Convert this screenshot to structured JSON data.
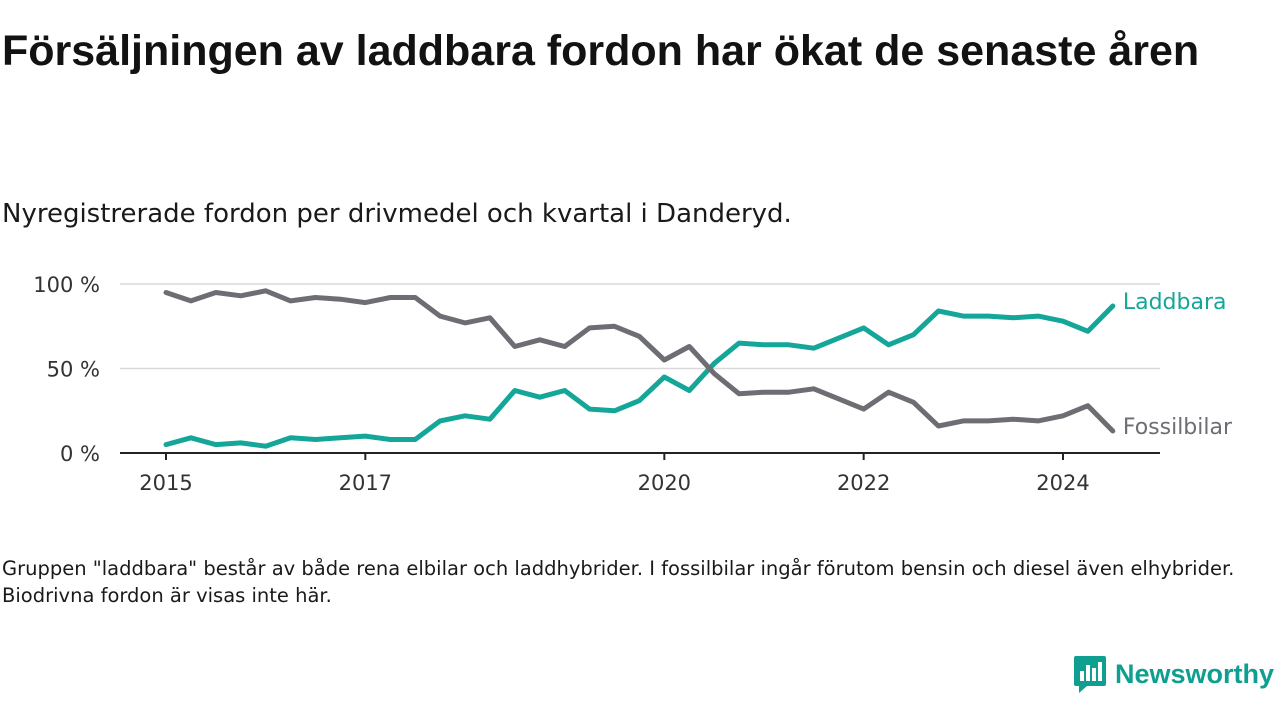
{
  "title": "Försäljningen av laddbara fordon har ökat de senaste åren",
  "subtitle": "Nyregistrerade fordon per drivmedel och kvartal i Danderyd.",
  "note": "Gruppen \"laddbara\" består av både rena elbilar och laddhybrider. I fossilbilar ingår förutom bensin och diesel även elhybrider. Biodrivna fordon är visas inte här.",
  "brand": {
    "name": "Newsworthy",
    "color": "#0e9f90",
    "icon": "newsworthy-logo-icon"
  },
  "chart_data": {
    "type": "line",
    "title": "Försäljningen av laddbara fordon har ökat de senaste åren",
    "xlabel": "",
    "ylabel": "",
    "ylim": [
      0,
      100
    ],
    "y_ticks": [
      0,
      50,
      100
    ],
    "y_tick_labels": [
      "0 %",
      "50 %",
      "100 %"
    ],
    "x_ticks": [
      2015,
      2017,
      2020,
      2022,
      2024
    ],
    "x_tick_labels": [
      "2015",
      "2017",
      "2020",
      "2022",
      "2024"
    ],
    "grid": true,
    "x": [
      2015.0,
      2015.25,
      2015.5,
      2015.75,
      2016.0,
      2016.25,
      2016.5,
      2016.75,
      2017.0,
      2017.25,
      2017.5,
      2017.75,
      2018.0,
      2018.25,
      2018.5,
      2018.75,
      2019.0,
      2019.25,
      2019.5,
      2019.75,
      2020.0,
      2020.25,
      2020.5,
      2020.75,
      2021.0,
      2021.25,
      2021.5,
      2021.75,
      2022.0,
      2022.25,
      2022.5,
      2022.75,
      2023.0,
      2023.25,
      2023.5,
      2023.75,
      2024.0,
      2024.25,
      2024.5
    ],
    "series": [
      {
        "name": "Laddbara",
        "color": "#14a699",
        "values": [
          5,
          9,
          5,
          6,
          4,
          9,
          8,
          9,
          10,
          8,
          8,
          19,
          22,
          20,
          37,
          33,
          37,
          26,
          25,
          31,
          45,
          37,
          53,
          65,
          64,
          64,
          62,
          68,
          74,
          64,
          70,
          84,
          81,
          81,
          80,
          81,
          78,
          72,
          87
        ]
      },
      {
        "name": "Fossilbilar",
        "color": "#6d6d74",
        "values": [
          95,
          90,
          95,
          93,
          96,
          90,
          92,
          91,
          89,
          92,
          92,
          81,
          77,
          80,
          63,
          67,
          63,
          74,
          75,
          69,
          55,
          63,
          47,
          35,
          36,
          36,
          38,
          32,
          26,
          36,
          30,
          16,
          19,
          19,
          20,
          19,
          22,
          28,
          13
        ]
      }
    ]
  }
}
